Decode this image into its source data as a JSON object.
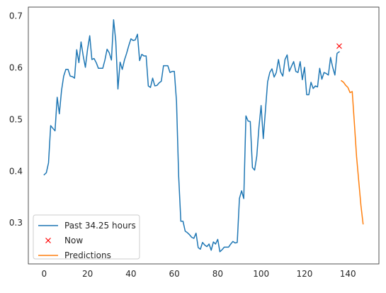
{
  "chart_data": {
    "type": "line",
    "title": "",
    "xlabel": "",
    "ylabel": "",
    "xlim": [
      -7.3,
      154.3
    ],
    "ylim": [
      0.2205,
      0.7175
    ],
    "grid": false,
    "legend_position": "lower-left",
    "x_ticks": [
      0,
      20,
      40,
      60,
      80,
      100,
      120,
      140
    ],
    "y_ticks": [
      0.3,
      0.4,
      0.5,
      0.6,
      0.7
    ],
    "series": [
      {
        "name": "Past 34.25 hours",
        "color": "#1f77b4",
        "marker": "line",
        "x": [
          0,
          1,
          2,
          3,
          4,
          5,
          6,
          7,
          8,
          9,
          10,
          11,
          12,
          13,
          14,
          15,
          16,
          17,
          18,
          19,
          20,
          21,
          22,
          23,
          24,
          25,
          26,
          27,
          28,
          29,
          30,
          31,
          32,
          33,
          34,
          35,
          36,
          37,
          38,
          39,
          40,
          41,
          42,
          43,
          44,
          45,
          46,
          47,
          48,
          49,
          50,
          51,
          52,
          53,
          54,
          55,
          56,
          57,
          58,
          59,
          60,
          61,
          62,
          63,
          64,
          65,
          66,
          67,
          68,
          69,
          70,
          71,
          72,
          73,
          74,
          75,
          76,
          77,
          78,
          79,
          80,
          81,
          82,
          83,
          84,
          85,
          86,
          87,
          88,
          89,
          90,
          91,
          92,
          93,
          94,
          95,
          96,
          97,
          98,
          99,
          100,
          101,
          102,
          103,
          104,
          105,
          106,
          107,
          108,
          109,
          110,
          111,
          112,
          113,
          114,
          115,
          116,
          117,
          118,
          119,
          120,
          121,
          122,
          123,
          124,
          125,
          126,
          127,
          128,
          129,
          130,
          131,
          132,
          133,
          134,
          135,
          136
        ],
        "y": [
          0.393,
          0.397,
          0.416,
          0.488,
          0.483,
          0.478,
          0.543,
          0.511,
          0.556,
          0.584,
          0.597,
          0.597,
          0.584,
          0.583,
          0.58,
          0.635,
          0.61,
          0.65,
          0.623,
          0.601,
          0.636,
          0.662,
          0.616,
          0.618,
          0.61,
          0.599,
          0.599,
          0.599,
          0.615,
          0.636,
          0.629,
          0.615,
          0.693,
          0.652,
          0.559,
          0.611,
          0.597,
          0.615,
          0.628,
          0.643,
          0.656,
          0.653,
          0.654,
          0.665,
          0.614,
          0.626,
          0.623,
          0.623,
          0.565,
          0.562,
          0.58,
          0.565,
          0.566,
          0.571,
          0.574,
          0.604,
          0.604,
          0.604,
          0.591,
          0.593,
          0.593,
          0.535,
          0.39,
          0.303,
          0.303,
          0.284,
          0.281,
          0.277,
          0.272,
          0.27,
          0.28,
          0.252,
          0.249,
          0.262,
          0.257,
          0.254,
          0.259,
          0.247,
          0.263,
          0.259,
          0.268,
          0.244,
          0.248,
          0.253,
          0.253,
          0.253,
          0.259,
          0.264,
          0.261,
          0.262,
          0.347,
          0.362,
          0.347,
          0.507,
          0.497,
          0.496,
          0.407,
          0.402,
          0.429,
          0.485,
          0.527,
          0.463,
          0.518,
          0.573,
          0.591,
          0.598,
          0.582,
          0.591,
          0.616,
          0.592,
          0.584,
          0.616,
          0.625,
          0.593,
          0.603,
          0.612,
          0.593,
          0.591,
          0.612,
          0.577,
          0.601,
          0.548,
          0.548,
          0.572,
          0.56,
          0.565,
          0.563,
          0.599,
          0.578,
          0.591,
          0.589,
          0.586,
          0.62,
          0.601,
          0.586,
          0.628,
          0.631
        ]
      },
      {
        "name": "Now",
        "color": "#ff0000",
        "marker": "x",
        "x": [
          136
        ],
        "y": [
          0.642
        ]
      },
      {
        "name": "Predictions",
        "color": "#ff7f0e",
        "marker": "line",
        "x": [
          137,
          138,
          139,
          140,
          141,
          142,
          143,
          144,
          145,
          146,
          147
        ],
        "y": [
          0.575,
          0.572,
          0.566,
          0.562,
          0.552,
          0.554,
          0.492,
          0.428,
          0.381,
          0.334,
          0.298
        ]
      }
    ]
  }
}
